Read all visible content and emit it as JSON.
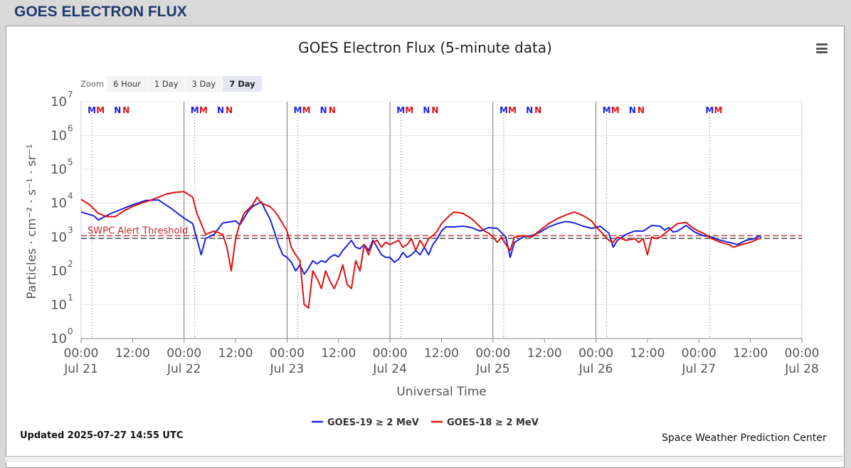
{
  "header": {
    "title": "GOES ELECTRON FLUX"
  },
  "chart_data": {
    "type": "line",
    "title": "GOES Electron Flux (5-minute data)",
    "xlabel": "Universal Time",
    "ylabel": "Particles · cm⁻² · s⁻¹ · sr⁻¹",
    "y_scale": "log",
    "ylim": [
      1,
      10000000
    ],
    "y_ticks": [
      {
        "base": "10",
        "exp": "0"
      },
      {
        "base": "10",
        "exp": "1"
      },
      {
        "base": "10",
        "exp": "2"
      },
      {
        "base": "10",
        "exp": "3"
      },
      {
        "base": "10",
        "exp": "4"
      },
      {
        "base": "10",
        "exp": "5"
      },
      {
        "base": "10",
        "exp": "6"
      },
      {
        "base": "10",
        "exp": "7"
      }
    ],
    "xlim_hours": [
      0,
      168
    ],
    "x_ticks": [
      {
        "time": "00:00",
        "date": "Jul 21"
      },
      {
        "time": "12:00",
        "date": ""
      },
      {
        "time": "00:00",
        "date": "Jul 22"
      },
      {
        "time": "12:00",
        "date": ""
      },
      {
        "time": "00:00",
        "date": "Jul 23"
      },
      {
        "time": "12:00",
        "date": ""
      },
      {
        "time": "00:00",
        "date": "Jul 24"
      },
      {
        "time": "12:00",
        "date": ""
      },
      {
        "time": "00:00",
        "date": "Jul 25"
      },
      {
        "time": "12:00",
        "date": ""
      },
      {
        "time": "00:00",
        "date": "Jul 26"
      },
      {
        "time": "12:00",
        "date": ""
      },
      {
        "time": "00:00",
        "date": "Jul 27"
      },
      {
        "time": "12:00",
        "date": ""
      },
      {
        "time": "00:00",
        "date": "Jul 28"
      }
    ],
    "threshold": {
      "label": "SWPC Alert Threshold",
      "value": 1000
    },
    "markers": [
      {
        "t": 2.5,
        "text": "M",
        "color": "#1a22dd"
      },
      {
        "t": 4.5,
        "text": "M",
        "color": "#e01010"
      },
      {
        "t": 8.5,
        "text": "N",
        "color": "#1a22dd"
      },
      {
        "t": 10.5,
        "text": "N",
        "color": "#e01010"
      },
      {
        "t": 26.5,
        "text": "M",
        "color": "#1a22dd"
      },
      {
        "t": 28.5,
        "text": "M",
        "color": "#e01010"
      },
      {
        "t": 32.5,
        "text": "N",
        "color": "#1a22dd"
      },
      {
        "t": 34.5,
        "text": "N",
        "color": "#e01010"
      },
      {
        "t": 50.5,
        "text": "M",
        "color": "#1a22dd"
      },
      {
        "t": 52.5,
        "text": "M",
        "color": "#e01010"
      },
      {
        "t": 56.5,
        "text": "N",
        "color": "#1a22dd"
      },
      {
        "t": 58.5,
        "text": "N",
        "color": "#e01010"
      },
      {
        "t": 74.5,
        "text": "M",
        "color": "#1a22dd"
      },
      {
        "t": 76.5,
        "text": "M",
        "color": "#e01010"
      },
      {
        "t": 80.5,
        "text": "N",
        "color": "#1a22dd"
      },
      {
        "t": 82.5,
        "text": "N",
        "color": "#e01010"
      },
      {
        "t": 98.5,
        "text": "M",
        "color": "#1a22dd"
      },
      {
        "t": 100.5,
        "text": "M",
        "color": "#e01010"
      },
      {
        "t": 104.5,
        "text": "N",
        "color": "#1a22dd"
      },
      {
        "t": 106.5,
        "text": "N",
        "color": "#e01010"
      },
      {
        "t": 122.5,
        "text": "M",
        "color": "#1a22dd"
      },
      {
        "t": 124.5,
        "text": "M",
        "color": "#e01010"
      },
      {
        "t": 128.5,
        "text": "N",
        "color": "#1a22dd"
      },
      {
        "t": 130.5,
        "text": "N",
        "color": "#e01010"
      },
      {
        "t": 146.5,
        "text": "M",
        "color": "#1a22dd"
      },
      {
        "t": 148.5,
        "text": "M",
        "color": "#e01010"
      }
    ],
    "dotted_lines_hours": [
      2.5,
      26.5,
      50.5,
      74.5,
      98.5,
      122.5,
      146.5
    ],
    "day_lines_hours": [
      24,
      48,
      72,
      96,
      120
    ],
    "series": [
      {
        "name": "GOES-19 ≥ 2 MeV",
        "color": "#1a22dd",
        "points": [
          [
            0,
            5500
          ],
          [
            3,
            4200
          ],
          [
            4,
            3200
          ],
          [
            7,
            5000
          ],
          [
            12,
            9000
          ],
          [
            15,
            12000
          ],
          [
            18,
            12500
          ],
          [
            21,
            7000
          ],
          [
            24,
            3600
          ],
          [
            26,
            2500
          ],
          [
            28,
            300
          ],
          [
            29,
            900
          ],
          [
            31,
            1200
          ],
          [
            33,
            2600
          ],
          [
            36,
            3000
          ],
          [
            37,
            2300
          ],
          [
            39,
            6000
          ],
          [
            40,
            8000
          ],
          [
            42,
            11000
          ],
          [
            43,
            6000
          ],
          [
            44,
            3500
          ],
          [
            45,
            1500
          ],
          [
            46,
            600
          ],
          [
            47,
            300
          ],
          [
            48,
            250
          ],
          [
            49,
            180
          ],
          [
            50,
            100
          ],
          [
            51,
            150
          ],
          [
            52,
            80
          ],
          [
            53,
            120
          ],
          [
            54,
            200
          ],
          [
            55,
            160
          ],
          [
            56,
            200
          ],
          [
            57,
            180
          ],
          [
            58,
            250
          ],
          [
            59,
            300
          ],
          [
            60,
            260
          ],
          [
            61,
            400
          ],
          [
            62,
            560
          ],
          [
            63,
            800
          ],
          [
            64,
            500
          ],
          [
            65,
            450
          ],
          [
            66,
            600
          ],
          [
            67,
            400
          ],
          [
            68,
            800
          ],
          [
            69,
            500
          ],
          [
            70,
            300
          ],
          [
            71,
            250
          ],
          [
            72,
            250
          ],
          [
            73,
            180
          ],
          [
            74,
            220
          ],
          [
            75,
            350
          ],
          [
            76,
            250
          ],
          [
            77,
            300
          ],
          [
            78,
            400
          ],
          [
            79,
            300
          ],
          [
            80,
            500
          ],
          [
            81,
            300
          ],
          [
            82,
            600
          ],
          [
            83,
            900
          ],
          [
            84,
            1500
          ],
          [
            85,
            2000
          ],
          [
            87,
            2000
          ],
          [
            89,
            2100
          ],
          [
            91,
            1900
          ],
          [
            93,
            1500
          ],
          [
            95,
            1900
          ],
          [
            97,
            1800
          ],
          [
            99,
            1000
          ],
          [
            100,
            250
          ],
          [
            101,
            700
          ],
          [
            103,
            1000
          ],
          [
            105,
            1100
          ],
          [
            107,
            1400
          ],
          [
            109,
            2000
          ],
          [
            111,
            2500
          ],
          [
            113,
            2900
          ],
          [
            115,
            2600
          ],
          [
            117,
            2100
          ],
          [
            119,
            1800
          ],
          [
            121,
            2100
          ],
          [
            123,
            1300
          ],
          [
            124,
            500
          ],
          [
            125,
            800
          ],
          [
            127,
            1200
          ],
          [
            129,
            1500
          ],
          [
            131,
            1500
          ],
          [
            133,
            2200
          ],
          [
            135,
            2100
          ],
          [
            136,
            1600
          ],
          [
            137,
            1900
          ],
          [
            138,
            1400
          ],
          [
            139,
            1500
          ],
          [
            141,
            2200
          ],
          [
            143,
            1400
          ],
          [
            145,
            1100
          ],
          [
            147,
            1000
          ],
          [
            149,
            800
          ],
          [
            151,
            700
          ],
          [
            153,
            600
          ],
          [
            155,
            800
          ],
          [
            157,
            900
          ],
          [
            158,
            1100
          ],
          [
            158.5,
            950
          ]
        ]
      },
      {
        "name": "GOES-18 ≥ 2 MeV",
        "color": "#e01010",
        "points": [
          [
            0,
            13000
          ],
          [
            2,
            9000
          ],
          [
            4,
            5000
          ],
          [
            6,
            4000
          ],
          [
            8,
            4000
          ],
          [
            10,
            6000
          ],
          [
            12,
            8000
          ],
          [
            14,
            10000
          ],
          [
            16,
            12000
          ],
          [
            18,
            15000
          ],
          [
            20,
            19000
          ],
          [
            22,
            21000
          ],
          [
            24,
            22000
          ],
          [
            26,
            15000
          ],
          [
            27,
            5000
          ],
          [
            29,
            1200
          ],
          [
            31,
            1500
          ],
          [
            33,
            1200
          ],
          [
            34,
            500
          ],
          [
            35,
            100
          ],
          [
            36,
            900
          ],
          [
            37,
            2500
          ],
          [
            38,
            5000
          ],
          [
            40,
            9000
          ],
          [
            41,
            15000
          ],
          [
            42,
            10000
          ],
          [
            44,
            8000
          ],
          [
            45,
            6000
          ],
          [
            46,
            4000
          ],
          [
            48,
            1500
          ],
          [
            49,
            500
          ],
          [
            50,
            300
          ],
          [
            51,
            200
          ],
          [
            52,
            10
          ],
          [
            53,
            8
          ],
          [
            54,
            100
          ],
          [
            55,
            60
          ],
          [
            56,
            30
          ],
          [
            57,
            100
          ],
          [
            58,
            50
          ],
          [
            59,
            30
          ],
          [
            60,
            60
          ],
          [
            61,
            150
          ],
          [
            62,
            40
          ],
          [
            63,
            30
          ],
          [
            64,
            200
          ],
          [
            65,
            100
          ],
          [
            66,
            600
          ],
          [
            67,
            300
          ],
          [
            68,
            700
          ],
          [
            69,
            800
          ],
          [
            70,
            500
          ],
          [
            71,
            700
          ],
          [
            72,
            600
          ],
          [
            74,
            800
          ],
          [
            75,
            500
          ],
          [
            76,
            600
          ],
          [
            77,
            900
          ],
          [
            78,
            400
          ],
          [
            79,
            800
          ],
          [
            80,
            500
          ],
          [
            81,
            900
          ],
          [
            82,
            1100
          ],
          [
            83,
            1500
          ],
          [
            84,
            2500
          ],
          [
            86,
            4500
          ],
          [
            87,
            5500
          ],
          [
            89,
            5000
          ],
          [
            91,
            3500
          ],
          [
            93,
            2000
          ],
          [
            94,
            1500
          ],
          [
            95,
            1300
          ],
          [
            96,
            1000
          ],
          [
            97,
            700
          ],
          [
            98,
            1000
          ],
          [
            99,
            600
          ],
          [
            100,
            400
          ],
          [
            101,
            1000
          ],
          [
            103,
            1100
          ],
          [
            105,
            1000
          ],
          [
            107,
            1600
          ],
          [
            109,
            2500
          ],
          [
            111,
            3500
          ],
          [
            113,
            4500
          ],
          [
            115,
            5500
          ],
          [
            117,
            4300
          ],
          [
            119,
            3000
          ],
          [
            120,
            2000
          ],
          [
            121,
            1500
          ],
          [
            123,
            800
          ],
          [
            124,
            700
          ],
          [
            125,
            1000
          ],
          [
            127,
            800
          ],
          [
            129,
            900
          ],
          [
            130,
            700
          ],
          [
            131,
            900
          ],
          [
            132,
            300
          ],
          [
            133,
            1000
          ],
          [
            134,
            900
          ],
          [
            135,
            1000
          ],
          [
            137,
            1600
          ],
          [
            139,
            2500
          ],
          [
            141,
            2700
          ],
          [
            143,
            1700
          ],
          [
            145,
            1300
          ],
          [
            147,
            900
          ],
          [
            149,
            700
          ],
          [
            151,
            600
          ],
          [
            152,
            500
          ],
          [
            154,
            600
          ],
          [
            156,
            700
          ],
          [
            158,
            900
          ],
          [
            158.5,
            900
          ]
        ]
      }
    ],
    "legend_placement": "bottom-center",
    "grid": true
  },
  "zoom": {
    "label": "Zoom",
    "buttons": [
      {
        "label": "6 Hour",
        "active": false
      },
      {
        "label": "1 Day",
        "active": false
      },
      {
        "label": "3 Day",
        "active": false
      },
      {
        "label": "7 Day",
        "active": true
      }
    ]
  },
  "footer": {
    "updated": "Updated 2025-07-27 14:55 UTC",
    "credit": "Space Weather Prediction Center"
  }
}
